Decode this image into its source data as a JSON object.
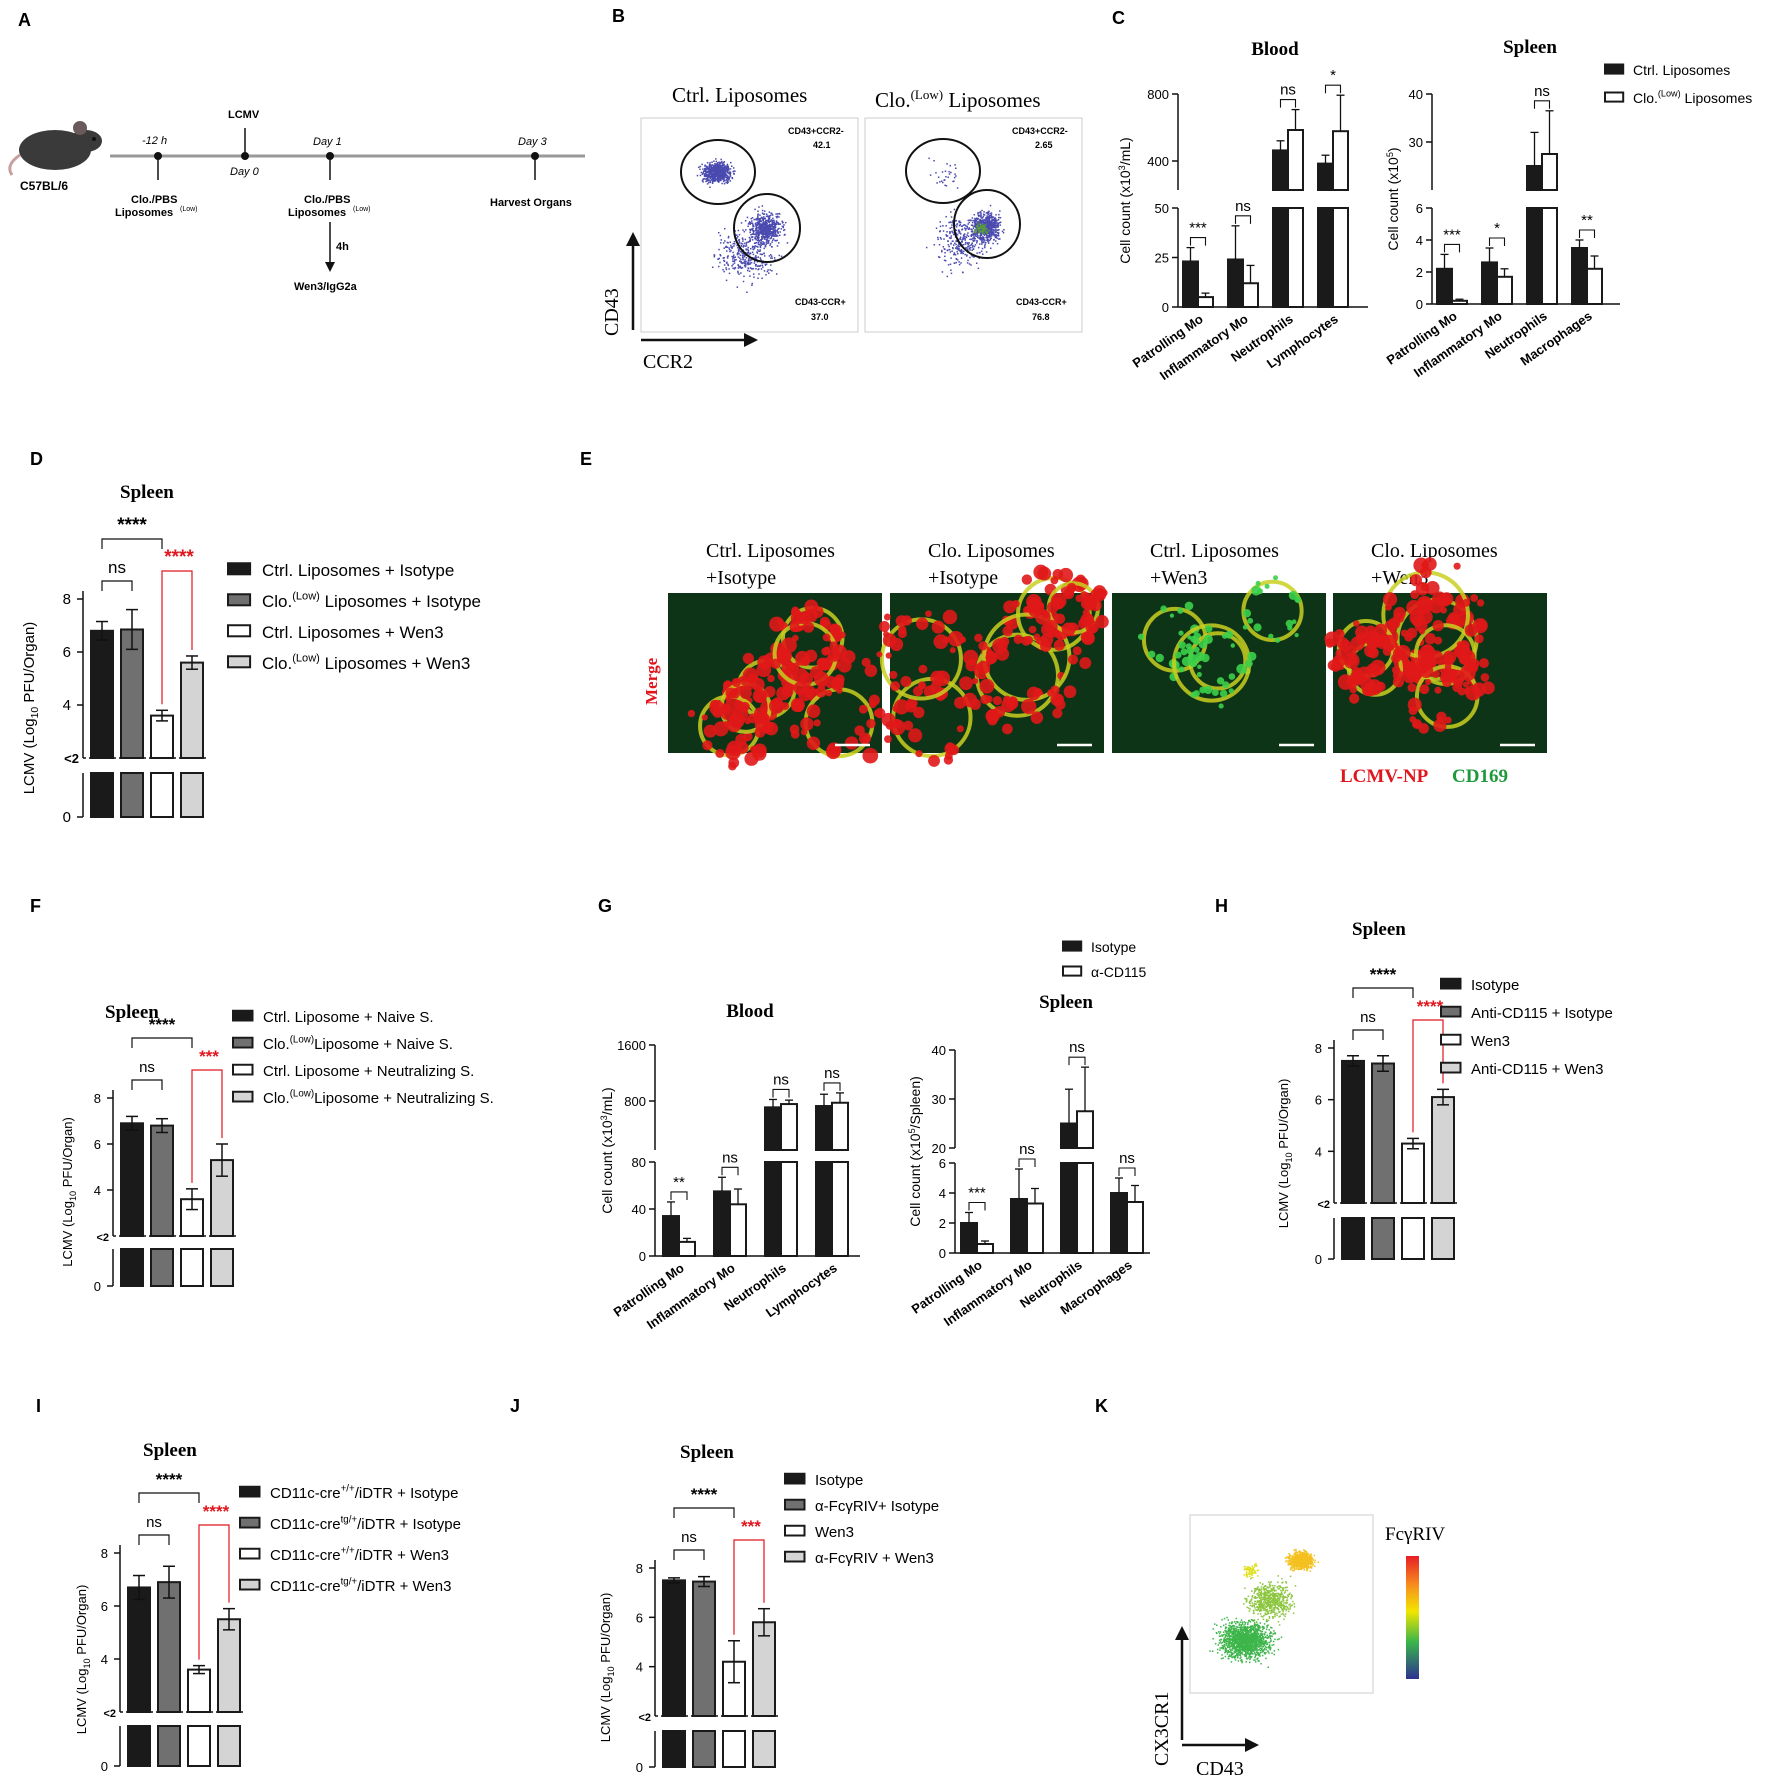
{
  "panel_letters": [
    "A",
    "B",
    "C",
    "D",
    "E",
    "F",
    "G",
    "H",
    "I",
    "J",
    "K"
  ],
  "panel_a": {
    "strain": "C57BL/6",
    "lcmv": "LCMV",
    "t_minus12": "-12 h",
    "day0": "Day 0",
    "day1": "Day 1",
    "day3": "Day 3",
    "clo1_line1": "Clo./PBS",
    "clo1_line2": "Liposomes",
    "clo1_sup": "(Low)",
    "clo2_line1": "Clo./PBS",
    "clo2_line2": "Liposomes",
    "clo2_sup": "(Low)",
    "harvest": "Harvest Organs",
    "four_h": "4h",
    "wen3": "Wen3/IgG2a"
  },
  "panel_b": {
    "left_title": "Ctrl. Liposomes",
    "right_title_main": "Clo.",
    "right_title_sup": "(Low)",
    "right_title_rest": " Liposomes",
    "y_axis": "CD43",
    "x_axis": "CCR2",
    "left_gate_top_name": "CD43+CCR2-",
    "left_gate_top_value": "42.1",
    "left_gate_bottom_name": "CD43-CCR+",
    "left_gate_bottom_value": "37.0",
    "right_gate_top_name": "CD43+CCR2-",
    "right_gate_top_value": "2.65",
    "right_gate_bottom_name": "CD43-CCR+",
    "right_gate_bottom_value": "76.8"
  },
  "panel_e": {
    "titles": [
      [
        "Ctrl. Liposomes",
        "+Isotype"
      ],
      [
        "Clo. Liposomes",
        "+Isotype"
      ],
      [
        "Ctrl. Liposomes",
        "+Wen3"
      ],
      [
        "Clo. Liposomes",
        "+Wen3"
      ]
    ],
    "merge_label": "Merge",
    "stain1": "LCMV-NP",
    "stain2": "CD169",
    "colors": {
      "red": "#e0161d",
      "green": "#1e9a3c"
    }
  },
  "panel_k": {
    "y_axis": "CX3CR1",
    "x_axis": "CD43",
    "scale_label": "FcγRIV"
  },
  "chart_data": [
    {
      "panel": "C-Blood",
      "type": "bar",
      "title": "Blood",
      "ylabel": "Cell count (x10³/mL)",
      "categories": [
        "Patrolling Mo",
        "Inflammatory Mo",
        "Neutrophils",
        "Lymphocytes"
      ],
      "y_ticks": [
        "0",
        "25",
        "50",
        "400",
        "800"
      ],
      "series": [
        {
          "name": "Ctrl. Liposomes",
          "values": [
            23,
            24,
            330,
            220
          ],
          "errors": [
            7,
            17,
            80,
            70
          ]
        },
        {
          "name": "Clo.(Low) Liposomes",
          "values": [
            5,
            12,
            500,
            490
          ],
          "errors": [
            2,
            9,
            170,
            300
          ]
        }
      ],
      "significance": [
        "***",
        "ns",
        "ns",
        "*"
      ]
    },
    {
      "panel": "C-Spleen",
      "type": "bar",
      "title": "Spleen",
      "ylabel": "Cell count (x10⁵)",
      "categories": [
        "Patrolling Mo",
        "Inflammatory Mo",
        "Neutrophils",
        "Macrophages"
      ],
      "y_ticks": [
        "0",
        "2",
        "4",
        "6",
        "20",
        "30",
        "40"
      ],
      "series": [
        {
          "name": "Ctrl. Liposomes",
          "values": [
            2.2,
            2.6,
            25,
            3.5
          ],
          "errors": [
            0.9,
            0.9,
            7,
            0.5
          ]
        },
        {
          "name": "Clo.(Low) Liposomes",
          "values": [
            0.2,
            1.7,
            27.5,
            2.2
          ],
          "errors": [
            0.1,
            0.5,
            9,
            0.8
          ]
        }
      ],
      "legend": [
        "Ctrl. Liposomes",
        "Clo.(Low) Liposomes"
      ],
      "significance": [
        "***",
        "*",
        "ns",
        "**"
      ]
    },
    {
      "panel": "D",
      "type": "bar",
      "title": "Spleen",
      "ylabel": "LCMV (Log₁₀ PFU/Organ)",
      "categories": [
        "Ctrl. Liposomes + Isotype",
        "Clo.(Low) Liposomes + Isotype",
        "Ctrl. Liposomes + Wen3",
        "Clo.(Low) Liposomes + Wen3"
      ],
      "values": [
        6.8,
        6.85,
        3.6,
        5.6
      ],
      "errors": [
        0.35,
        0.75,
        0.2,
        0.25
      ],
      "y_ticks": [
        "0",
        "<2",
        "4",
        "6",
        "8"
      ],
      "significance": {
        "outer": "****",
        "left": "ns",
        "right": "****"
      }
    },
    {
      "panel": "F",
      "type": "bar",
      "title": "Spleen",
      "ylabel": "LCMV (Log₁₀ PFU/Organ)",
      "categories": [
        "Ctrl. Liposome + Naive S.",
        "Clo.(Low)Liposome + Naive S.",
        "Ctrl. Liposome + Neutralizing S.",
        "Clo.(Low)Liposome + Neutralizing S."
      ],
      "values": [
        6.9,
        6.8,
        3.6,
        5.3
      ],
      "errors": [
        0.3,
        0.3,
        0.45,
        0.7
      ],
      "y_ticks": [
        "0",
        "<2",
        "4",
        "6",
        "8"
      ],
      "significance": {
        "outer": "****",
        "left": "ns",
        "right": "***"
      }
    },
    {
      "panel": "G-Blood",
      "type": "bar",
      "title": "Blood",
      "ylabel": "Cell count (x10³/mL)",
      "categories": [
        "Patrolling Mo",
        "Inflammatory Mo",
        "Neutrophils",
        "Lymphocytes"
      ],
      "y_ticks": [
        "0",
        "40",
        "80",
        "800",
        "1600"
      ],
      "series": [
        {
          "name": "Isotype",
          "values": [
            34,
            55,
            650,
            670
          ],
          "errors": [
            12,
            12,
            120,
            180
          ]
        },
        {
          "name": "α-CD115",
          "values": [
            12,
            44,
            700,
            720
          ],
          "errors": [
            3,
            13,
            60,
            150
          ]
        }
      ],
      "significance": [
        "**",
        "ns",
        "ns",
        "ns"
      ]
    },
    {
      "panel": "G-Spleen",
      "type": "bar",
      "title": "Spleen",
      "ylabel": "Cell count (x10⁵/Spleen)",
      "categories": [
        "Patrolling Mo",
        "Inflammatory Mo",
        "Neutrophils",
        "Macrophages"
      ],
      "y_ticks": [
        "0",
        "2",
        "4",
        "6",
        "20",
        "30",
        "40"
      ],
      "series": [
        {
          "name": "Isotype",
          "values": [
            2.0,
            3.6,
            25,
            4.0
          ],
          "errors": [
            0.7,
            2.0,
            7,
            1.0
          ]
        },
        {
          "name": "α-CD115",
          "values": [
            0.6,
            3.3,
            27.5,
            3.4
          ],
          "errors": [
            0.2,
            1.0,
            9,
            1.1
          ]
        }
      ],
      "legend": [
        "Isotype",
        "α-CD115"
      ],
      "significance": [
        "***",
        "ns",
        "ns",
        "ns"
      ]
    },
    {
      "panel": "H",
      "type": "bar",
      "title": "Spleen",
      "ylabel": "LCMV (Log₁₀ PFU/Organ)",
      "categories": [
        "Isotype",
        "Anti-CD115 + Isotype",
        "Wen3",
        "Anti-CD115 + Wen3"
      ],
      "values": [
        7.5,
        7.4,
        4.3,
        6.1
      ],
      "errors": [
        0.2,
        0.3,
        0.2,
        0.3
      ],
      "y_ticks": [
        "0",
        "<2",
        "4",
        "6",
        "8"
      ],
      "significance": {
        "outer": "****",
        "left": "ns",
        "right": "****"
      }
    },
    {
      "panel": "I",
      "type": "bar",
      "title": "Spleen",
      "ylabel": "LCMV (Log₁₀ PFU/Organ)",
      "categories": [
        "CD11c-cre+/+/iDTR + Isotype",
        "CD11c-cretg/+/iDTR + Isotype",
        "CD11c-cre+/+/iDTR + Wen3",
        "CD11c-cretg/+/iDTR + Wen3"
      ],
      "values": [
        6.7,
        6.9,
        3.6,
        5.5
      ],
      "errors": [
        0.45,
        0.6,
        0.15,
        0.4
      ],
      "y_ticks": [
        "0",
        "<2",
        "4",
        "6",
        "8"
      ],
      "significance": {
        "outer": "****",
        "left": "ns",
        "right": "****"
      }
    },
    {
      "panel": "J",
      "type": "bar",
      "title": "Spleen",
      "ylabel": "LCMV (Log₁₀ PFU/Organ)",
      "categories": [
        "Isotype",
        "α-FcγRIV+ Isotype",
        "Wen3",
        "α-FcγRIV + Wen3"
      ],
      "values": [
        7.5,
        7.45,
        4.2,
        5.8
      ],
      "errors": [
        0.1,
        0.2,
        0.85,
        0.55
      ],
      "y_ticks": [
        "0",
        "<2",
        "4",
        "6",
        "8"
      ],
      "significance": {
        "outer": "****",
        "left": "ns",
        "right": "***"
      }
    }
  ],
  "legends": {
    "C": [
      [
        "Ctrl. Liposomes",
        ""
      ],
      [
        "Clo.",
        "(Low)",
        " Liposomes"
      ]
    ],
    "D": [
      [
        "Ctrl. Liposomes  + Isotype"
      ],
      [
        "Clo.",
        "(Low)",
        " Liposomes  + Isotype"
      ],
      [
        "Ctrl. Liposomes  + Wen3"
      ],
      [
        "Clo.",
        "(Low)",
        " Liposomes  + Wen3"
      ]
    ],
    "F": [
      [
        "Ctrl. Liposome + Naive S."
      ],
      [
        "Clo.",
        "(Low)",
        "Liposome + Naive S."
      ],
      [
        "Ctrl. Liposome + Neutralizing S."
      ],
      [
        "Clo.",
        "(Low)",
        "Liposome + Neutralizing S."
      ]
    ],
    "G": [
      [
        "Isotype"
      ],
      [
        "α-CD115"
      ]
    ],
    "H": [
      [
        "Isotype"
      ],
      [
        "Anti-CD115 + Isotype"
      ],
      [
        " Wen3"
      ],
      [
        "Anti-CD115 + Wen3"
      ]
    ],
    "I": [
      [
        "CD11c-cre",
        "+/+",
        "/iDTR + Isotype"
      ],
      [
        "CD11c-cre",
        "tg/+",
        "/iDTR + Isotype"
      ],
      [
        "CD11c-cre",
        "+/+",
        "/iDTR + Wen3"
      ],
      [
        "CD11c-cre",
        "tg/+",
        "/iDTR + Wen3"
      ]
    ],
    "J": [
      [
        "Isotype"
      ],
      [
        "α-FcγRIV+  Isotype"
      ],
      [
        "Wen3"
      ],
      [
        "α-FcγRIV +  Wen3"
      ]
    ]
  }
}
